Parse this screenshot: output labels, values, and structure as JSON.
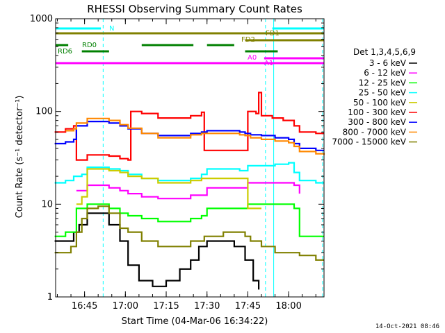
{
  "chart_data": {
    "type": "line",
    "title": "RHESSI Observing Summary Count Rates",
    "xlabel": "Start Time (04-Mar-06 16:34:22)",
    "ylabel": "Count Rate (s⁻¹ detector⁻¹)",
    "x_unit": "time of day (HH:MM)",
    "xlim": [
      "16:34:22",
      "18:13"
    ],
    "ylim": [
      1,
      1000
    ],
    "yscale": "log",
    "x_ticks": [
      "16:45",
      "17:00",
      "17:15",
      "17:30",
      "17:45",
      "18:00"
    ],
    "y_ticks": [
      "1",
      "10",
      "100",
      "1000"
    ],
    "legend_title": "Det 1,3,4,5,6,9",
    "legend_position": "right",
    "series": [
      {
        "name": "3 - 6 keV",
        "color": "#000000",
        "points": [
          [
            "16:34",
            4
          ],
          [
            "16:39",
            4
          ],
          [
            "16:41",
            5
          ],
          [
            "16:43",
            6
          ],
          [
            "16:46",
            8
          ],
          [
            "16:50",
            8
          ],
          [
            "16:54",
            6
          ],
          [
            "16:58",
            4
          ],
          [
            "17:01",
            2.2
          ],
          [
            "17:05",
            1.5
          ],
          [
            "17:10",
            1.3
          ],
          [
            "17:15",
            1.5
          ],
          [
            "17:20",
            2.0
          ],
          [
            "17:24",
            2.5
          ],
          [
            "17:27",
            3.5
          ],
          [
            "17:30",
            4
          ],
          [
            "17:35",
            4
          ],
          [
            "17:40",
            3.5
          ],
          [
            "17:44",
            2.5
          ],
          [
            "17:47",
            1.5
          ],
          [
            "17:49",
            1.2
          ]
        ]
      },
      {
        "name": "6 - 12 keV",
        "color": "#ff00ff",
        "points": [
          [
            "16:42",
            14
          ],
          [
            "16:46",
            16
          ],
          [
            "16:50",
            16
          ],
          [
            "16:54",
            15
          ],
          [
            "16:58",
            14
          ],
          [
            "17:01",
            13
          ],
          [
            "17:06",
            12
          ],
          [
            "17:12",
            11.5
          ],
          [
            "17:18",
            11.5
          ],
          [
            "17:24",
            12.5
          ],
          [
            "17:28",
            12.5
          ],
          [
            "17:30",
            15
          ],
          [
            "17:36",
            15
          ],
          [
            "17:42",
            15
          ],
          [
            "17:44",
            15
          ],
          [
            "17:45",
            17
          ],
          [
            "17:50",
            17
          ],
          [
            "17:55",
            17
          ],
          [
            "18:00",
            17
          ],
          [
            "18:02",
            16
          ],
          [
            "18:04",
            13
          ]
        ]
      },
      {
        "name": "12 - 25 keV",
        "color": "#00ff00",
        "points": [
          [
            "16:34",
            4.5
          ],
          [
            "16:38",
            5
          ],
          [
            "16:41",
            5
          ],
          [
            "16:42",
            9
          ],
          [
            "16:46",
            10
          ],
          [
            "16:50",
            10
          ],
          [
            "16:54",
            9
          ],
          [
            "16:58",
            8
          ],
          [
            "17:01",
            7.5
          ],
          [
            "17:06",
            7
          ],
          [
            "17:12",
            6.5
          ],
          [
            "17:18",
            6.5
          ],
          [
            "17:24",
            7
          ],
          [
            "17:28",
            7.5
          ],
          [
            "17:30",
            9
          ],
          [
            "17:36",
            9
          ],
          [
            "17:42",
            9
          ],
          [
            "17:44",
            9
          ],
          [
            "17:45",
            10
          ],
          [
            "17:50",
            10
          ],
          [
            "17:55",
            10
          ],
          [
            "18:00",
            10
          ],
          [
            "18:02",
            9
          ],
          [
            "18:04",
            4.5
          ],
          [
            "18:10",
            4.5
          ],
          [
            "18:13",
            4.5
          ]
        ]
      },
      {
        "name": "25 - 50 keV",
        "color": "#00ffff",
        "points": [
          [
            "16:34",
            17
          ],
          [
            "16:38",
            18
          ],
          [
            "16:41",
            20
          ],
          [
            "16:44",
            21
          ],
          [
            "16:46",
            25
          ],
          [
            "16:50",
            25
          ],
          [
            "16:54",
            24
          ],
          [
            "16:58",
            23
          ],
          [
            "17:01",
            21
          ],
          [
            "17:06",
            19
          ],
          [
            "17:12",
            18
          ],
          [
            "17:18",
            18
          ],
          [
            "17:24",
            19
          ],
          [
            "17:28",
            21
          ],
          [
            "17:30",
            24
          ],
          [
            "17:36",
            24
          ],
          [
            "17:42",
            23
          ],
          [
            "17:44",
            23
          ],
          [
            "17:45",
            26
          ],
          [
            "17:50",
            26
          ],
          [
            "17:55",
            27
          ],
          [
            "18:00",
            28
          ],
          [
            "18:02",
            22
          ],
          [
            "18:04",
            18
          ],
          [
            "18:10",
            17
          ],
          [
            "18:13",
            17
          ]
        ]
      },
      {
        "name": "50 - 100 keV",
        "color": "#cccc00",
        "points": [
          [
            "16:42",
            10
          ],
          [
            "16:44",
            12
          ],
          [
            "16:46",
            24
          ],
          [
            "16:50",
            24
          ],
          [
            "16:54",
            23
          ],
          [
            "16:58",
            22
          ],
          [
            "17:01",
            20
          ],
          [
            "17:06",
            19
          ],
          [
            "17:12",
            17
          ],
          [
            "17:18",
            17
          ],
          [
            "17:24",
            18
          ],
          [
            "17:28",
            19
          ],
          [
            "17:30",
            19
          ],
          [
            "17:36",
            19
          ],
          [
            "17:42",
            19
          ],
          [
            "17:44",
            19
          ],
          [
            "17:45",
            9
          ],
          [
            "17:50",
            9
          ]
        ]
      },
      {
        "name": "100 - 300 keV",
        "color": "#ff0000",
        "points": [
          [
            "16:34",
            60
          ],
          [
            "16:38",
            65
          ],
          [
            "16:41",
            70
          ],
          [
            "16:42",
            30
          ],
          [
            "16:46",
            34
          ],
          [
            "16:50",
            34
          ],
          [
            "16:54",
            33
          ],
          [
            "16:58",
            31
          ],
          [
            "17:01",
            30
          ],
          [
            "17:02",
            100
          ],
          [
            "17:06",
            95
          ],
          [
            "17:12",
            85
          ],
          [
            "17:18",
            85
          ],
          [
            "17:24",
            90
          ],
          [
            "17:28",
            98
          ],
          [
            "17:29",
            38
          ],
          [
            "17:36",
            38
          ],
          [
            "17:42",
            38
          ],
          [
            "17:44",
            38
          ],
          [
            "17:45",
            100
          ],
          [
            "17:48",
            95
          ],
          [
            "17:49",
            160
          ],
          [
            "17:50",
            90
          ],
          [
            "17:54",
            85
          ],
          [
            "17:58",
            80
          ],
          [
            "18:00",
            80
          ],
          [
            "18:02",
            70
          ],
          [
            "18:04",
            60
          ],
          [
            "18:10",
            58
          ],
          [
            "18:13",
            58
          ]
        ]
      },
      {
        "name": "300 - 800 keV",
        "color": "#0000ff",
        "points": [
          [
            "16:34",
            45
          ],
          [
            "16:38",
            47
          ],
          [
            "16:41",
            50
          ],
          [
            "16:42",
            70
          ],
          [
            "16:46",
            78
          ],
          [
            "16:50",
            78
          ],
          [
            "16:54",
            75
          ],
          [
            "16:58",
            70
          ],
          [
            "17:01",
            65
          ],
          [
            "17:06",
            58
          ],
          [
            "17:12",
            55
          ],
          [
            "17:18",
            55
          ],
          [
            "17:24",
            58
          ],
          [
            "17:28",
            60
          ],
          [
            "17:30",
            62
          ],
          [
            "17:36",
            62
          ],
          [
            "17:42",
            60
          ],
          [
            "17:44",
            58
          ],
          [
            "17:46",
            56
          ],
          [
            "17:50",
            55
          ],
          [
            "17:55",
            52
          ],
          [
            "18:00",
            50
          ],
          [
            "18:02",
            45
          ],
          [
            "18:04",
            40
          ],
          [
            "18:10",
            38
          ],
          [
            "18:13",
            38
          ]
        ]
      },
      {
        "name": "800 - 7000 keV",
        "color": "#ff8800",
        "points": [
          [
            "16:38",
            62
          ],
          [
            "16:41",
            65
          ],
          [
            "16:42",
            75
          ],
          [
            "16:46",
            84
          ],
          [
            "16:50",
            84
          ],
          [
            "16:54",
            80
          ],
          [
            "16:58",
            72
          ],
          [
            "17:01",
            66
          ],
          [
            "17:06",
            58
          ],
          [
            "17:12",
            52
          ],
          [
            "17:18",
            52
          ],
          [
            "17:24",
            56
          ],
          [
            "17:28",
            58
          ],
          [
            "17:30",
            58
          ],
          [
            "17:36",
            58
          ],
          [
            "17:42",
            56
          ],
          [
            "17:44",
            55
          ],
          [
            "17:46",
            52
          ],
          [
            "17:50",
            50
          ],
          [
            "17:55",
            48
          ],
          [
            "18:00",
            46
          ],
          [
            "18:02",
            42
          ],
          [
            "18:04",
            37
          ],
          [
            "18:10",
            35
          ],
          [
            "18:13",
            34
          ]
        ]
      },
      {
        "name": "7000 - 15000 keV",
        "color": "#808000",
        "points": [
          [
            "16:34",
            3
          ],
          [
            "16:38",
            3
          ],
          [
            "16:40",
            3.5
          ],
          [
            "16:42",
            5
          ],
          [
            "16:44",
            7
          ],
          [
            "16:46",
            9
          ],
          [
            "16:50",
            9.5
          ],
          [
            "16:54",
            8
          ],
          [
            "16:58",
            5.5
          ],
          [
            "17:01",
            5
          ],
          [
            "17:06",
            4
          ],
          [
            "17:12",
            3.5
          ],
          [
            "17:18",
            3.5
          ],
          [
            "17:24",
            4
          ],
          [
            "17:27",
            4
          ],
          [
            "17:29",
            4.5
          ],
          [
            "17:36",
            5
          ],
          [
            "17:42",
            5
          ],
          [
            "17:44",
            4.5
          ],
          [
            "17:46",
            4
          ],
          [
            "17:50",
            3.5
          ],
          [
            "17:55",
            3
          ],
          [
            "18:00",
            3
          ],
          [
            "18:04",
            2.8
          ],
          [
            "18:10",
            2.5
          ],
          [
            "18:13",
            2.5
          ]
        ]
      }
    ],
    "flag_bars": [
      {
        "label": "N",
        "color": "#00ffff",
        "segments": [
          [
            "16:34:22",
            "16:51"
          ],
          [
            "17:54",
            "18:13"
          ]
        ]
      },
      {
        "label": "FD1",
        "color": "#808000",
        "segments": [
          [
            "16:34:22",
            "18:13"
          ]
        ]
      },
      {
        "label": "FD2",
        "color": "#808000",
        "segments": [
          [
            "17:44",
            "18:13"
          ]
        ]
      },
      {
        "label": "RD0",
        "color": "#008000",
        "segments": [
          [
            "16:34:22",
            "16:39"
          ],
          [
            "17:06",
            "17:25"
          ],
          [
            "17:30",
            "17:40"
          ]
        ]
      },
      {
        "label": "RD6",
        "color": "#008000",
        "segments": [
          [
            "16:44",
            "16:54"
          ],
          [
            "17:44",
            "17:56"
          ]
        ]
      },
      {
        "label": "A0",
        "color": "#ff00ff",
        "segments": [
          [
            "17:51",
            "18:13"
          ]
        ]
      },
      {
        "label": "A1",
        "color": "#ff00ff",
        "segments": [
          [
            "16:34:22",
            "18:13"
          ]
        ]
      }
    ],
    "vertical_markers": [
      {
        "x": "16:34:22",
        "color": "#00ffff",
        "style": "solid"
      },
      {
        "x": "16:51:50",
        "color": "#00ffff",
        "style": "dashed"
      },
      {
        "x": "17:51:30",
        "color": "#00ffff",
        "style": "dashed"
      },
      {
        "x": "17:54:30",
        "color": "#00ffff",
        "style": "solid"
      },
      {
        "x": "18:12:30",
        "color": "#00ffff",
        "style": "dashed"
      }
    ],
    "grid": false
  },
  "timestamp": "14-Oct-2021 08:46"
}
